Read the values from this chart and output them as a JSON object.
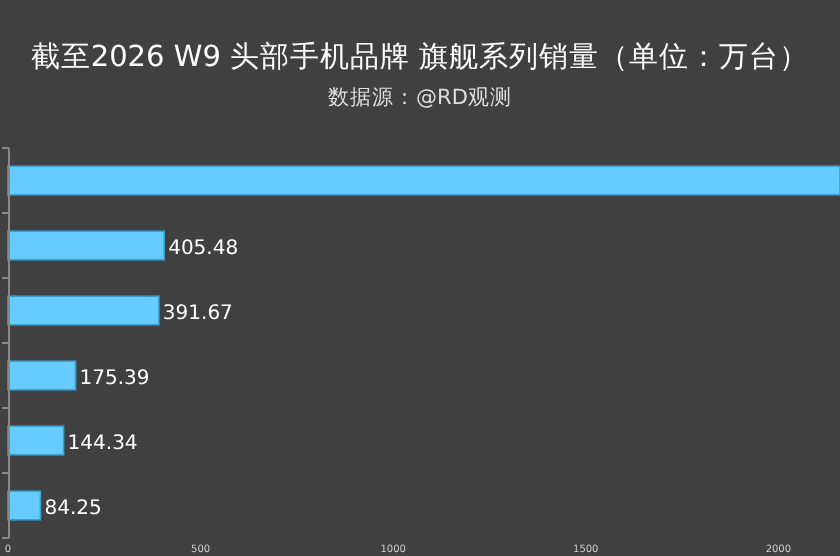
{
  "chart_data": {
    "type": "bar",
    "orientation": "horizontal",
    "title": "截至2026 W9 头部手机品牌 旗舰系列销量（单位：万台）",
    "subtitle": "数据源：@RD观测",
    "categories": [
      null,
      null,
      null,
      null,
      null,
      null
    ],
    "values": [
      2160,
      405.48,
      391.67,
      175.39,
      144.34,
      84.25
    ],
    "value_labels": [
      null,
      "405.48",
      "391.67",
      "175.39",
      "144.34",
      "84.25"
    ],
    "color": "#66ccff",
    "xlim": [
      0,
      2160
    ],
    "xticks": [
      0,
      500,
      1000,
      1500,
      2000
    ]
  }
}
